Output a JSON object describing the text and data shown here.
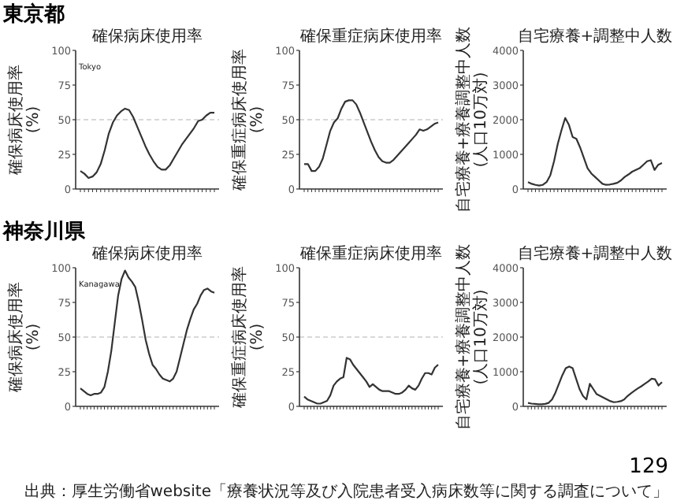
{
  "chart_data": [
    {
      "type": "line",
      "title": "確保病床使用率",
      "ylabel": "確保病床使用率(%)",
      "annotations": [
        "東京都",
        "Tokyo"
      ],
      "color": "#333333",
      "ylim": [
        0,
        100
      ],
      "yticks": [
        0,
        25,
        50,
        75,
        100
      ],
      "ref_lines": [
        {
          "axis": "y",
          "value": 50,
          "color": "#cccccc",
          "line_style": "dashed"
        }
      ],
      "categories": [
        null,
        null,
        null,
        null,
        null,
        null,
        null,
        null,
        null,
        null,
        null,
        null,
        null,
        null,
        null,
        null,
        null,
        null,
        null,
        null,
        null,
        null,
        null,
        null,
        null,
        null,
        null,
        null,
        null,
        null,
        null,
        null,
        null,
        null
      ],
      "values": [
        13,
        11,
        8,
        9,
        12,
        18,
        28,
        40,
        48,
        53,
        56,
        58,
        57,
        52,
        45,
        38,
        31,
        25,
        20,
        16,
        14,
        14,
        17,
        22,
        27,
        32,
        36,
        40,
        44,
        49,
        50,
        53,
        55,
        55
      ]
    },
    {
      "type": "line",
      "title": "確保重症病床使用率",
      "ylabel": "確保重症病床使用率(%)",
      "color": "#333333",
      "ylim": [
        0,
        100
      ],
      "yticks": [
        0,
        25,
        50,
        75,
        100
      ],
      "ref_lines": [
        {
          "axis": "y",
          "value": 50,
          "color": "#cccccc",
          "line_style": "dashed"
        }
      ],
      "categories": [
        null,
        null,
        null,
        null,
        null,
        null,
        null,
        null,
        null,
        null,
        null,
        null,
        null,
        null,
        null,
        null,
        null,
        null,
        null,
        null,
        null,
        null,
        null,
        null,
        null,
        null,
        null,
        null,
        null,
        null,
        null,
        null,
        null,
        null,
        null,
        null,
        null
      ],
      "values": [
        18,
        18,
        13,
        13,
        16,
        22,
        32,
        42,
        48,
        51,
        58,
        63,
        64,
        64,
        61,
        55,
        48,
        41,
        34,
        28,
        23,
        20,
        19,
        19,
        21,
        24,
        27,
        30,
        33,
        36,
        39,
        43,
        42,
        43,
        45,
        47,
        48
      ]
    },
    {
      "type": "line",
      "title": "自宅療養+調整中人数",
      "ylabel": "自宅療養+療養調整中人数(人口10万対)",
      "color": "#333333",
      "ylim": [
        0,
        4000
      ],
      "yticks": [
        0,
        1000,
        2000,
        3000,
        4000
      ],
      "categories": [
        null,
        null,
        null,
        null,
        null,
        null,
        null,
        null,
        null,
        null,
        null,
        null,
        null,
        null,
        null,
        null,
        null,
        null,
        null,
        null,
        null,
        null,
        null,
        null,
        null,
        null,
        null,
        null,
        null,
        null,
        null,
        null,
        null,
        null,
        null,
        null,
        null
      ],
      "values": [
        200,
        150,
        120,
        100,
        120,
        200,
        400,
        800,
        1300,
        1700,
        2050,
        1850,
        1500,
        1450,
        1200,
        900,
        600,
        450,
        350,
        250,
        150,
        120,
        130,
        150,
        180,
        250,
        350,
        420,
        500,
        550,
        600,
        700,
        800,
        830,
        550,
        700,
        750
      ]
    },
    {
      "type": "line",
      "title": "確保病床使用率",
      "ylabel": "確保病床使用率(%)",
      "annotations": [
        "神奈川県",
        "Kanagawa"
      ],
      "color": "#333333",
      "ylim": [
        0,
        100
      ],
      "yticks": [
        0,
        25,
        50,
        75,
        100
      ],
      "ref_lines": [
        {
          "axis": "y",
          "value": 50,
          "color": "#cccccc",
          "line_style": "dashed"
        }
      ],
      "categories": [
        null,
        null,
        null,
        null,
        null,
        null,
        null,
        null,
        null,
        null,
        null,
        null,
        null,
        null,
        null,
        null,
        null,
        null,
        null,
        null,
        null,
        null,
        null,
        null,
        null,
        null,
        null,
        null,
        null,
        null,
        null,
        null,
        null,
        null,
        null,
        null,
        null,
        null,
        null,
        null
      ],
      "values": [
        13,
        11,
        9,
        8,
        9,
        9,
        10,
        14,
        25,
        40,
        60,
        80,
        92,
        98,
        93,
        90,
        86,
        75,
        62,
        48,
        38,
        30,
        27,
        23,
        20,
        19,
        18,
        20,
        25,
        35,
        45,
        55,
        63,
        70,
        74,
        80,
        84,
        85,
        83,
        82
      ]
    },
    {
      "type": "line",
      "title": "確保重症病床使用率",
      "ylabel": "確保重症病床使用率(%)",
      "color": "#333333",
      "ylim": [
        0,
        100
      ],
      "yticks": [
        0,
        25,
        50,
        75,
        100
      ],
      "ref_lines": [
        {
          "axis": "y",
          "value": 50,
          "color": "#cccccc",
          "line_style": "dashed"
        }
      ],
      "categories": [
        null,
        null,
        null,
        null,
        null,
        null,
        null,
        null,
        null,
        null,
        null,
        null,
        null,
        null,
        null,
        null,
        null,
        null,
        null,
        null,
        null,
        null,
        null,
        null,
        null,
        null,
        null,
        null,
        null,
        null,
        null,
        null,
        null,
        null,
        null,
        null,
        null,
        null,
        null,
        null,
        null,
        null
      ],
      "values": [
        7,
        5,
        4,
        3,
        2,
        2,
        3,
        4,
        8,
        15,
        18,
        20,
        21,
        35,
        34,
        30,
        27,
        24,
        21,
        18,
        14,
        16,
        14,
        12,
        11,
        11,
        11,
        10,
        9,
        9,
        10,
        12,
        15,
        13,
        12,
        15,
        20,
        24,
        24,
        23,
        28,
        30
      ]
    },
    {
      "type": "line",
      "title": "自宅療養+調整中人数",
      "ylabel": "自宅療養+療養調整中人数(人口10万対)",
      "annotations": [
        "出典：厚生労働省website「療養状況等及び入院患者受入病床数等に関する調査について」",
        "129"
      ],
      "color": "#333333",
      "ylim": [
        0,
        4000
      ],
      "yticks": [
        0,
        1000,
        2000,
        3000,
        4000
      ],
      "categories": [
        null,
        null,
        null,
        null,
        null,
        null,
        null,
        null,
        null,
        null,
        null,
        null,
        null,
        null,
        null,
        null,
        null,
        null,
        null,
        null,
        null,
        null,
        null,
        null,
        null,
        null,
        null,
        null,
        null,
        null,
        null,
        null,
        null,
        null,
        null,
        null,
        null,
        null,
        null,
        null
      ],
      "values": [
        100,
        80,
        70,
        60,
        60,
        70,
        100,
        200,
        400,
        650,
        900,
        1100,
        1150,
        1100,
        800,
        500,
        300,
        200,
        650,
        500,
        350,
        300,
        250,
        200,
        150,
        120,
        130,
        150,
        200,
        300,
        380,
        450,
        520,
        580,
        650,
        720,
        800,
        780,
        600,
        700
      ]
    }
  ]
}
